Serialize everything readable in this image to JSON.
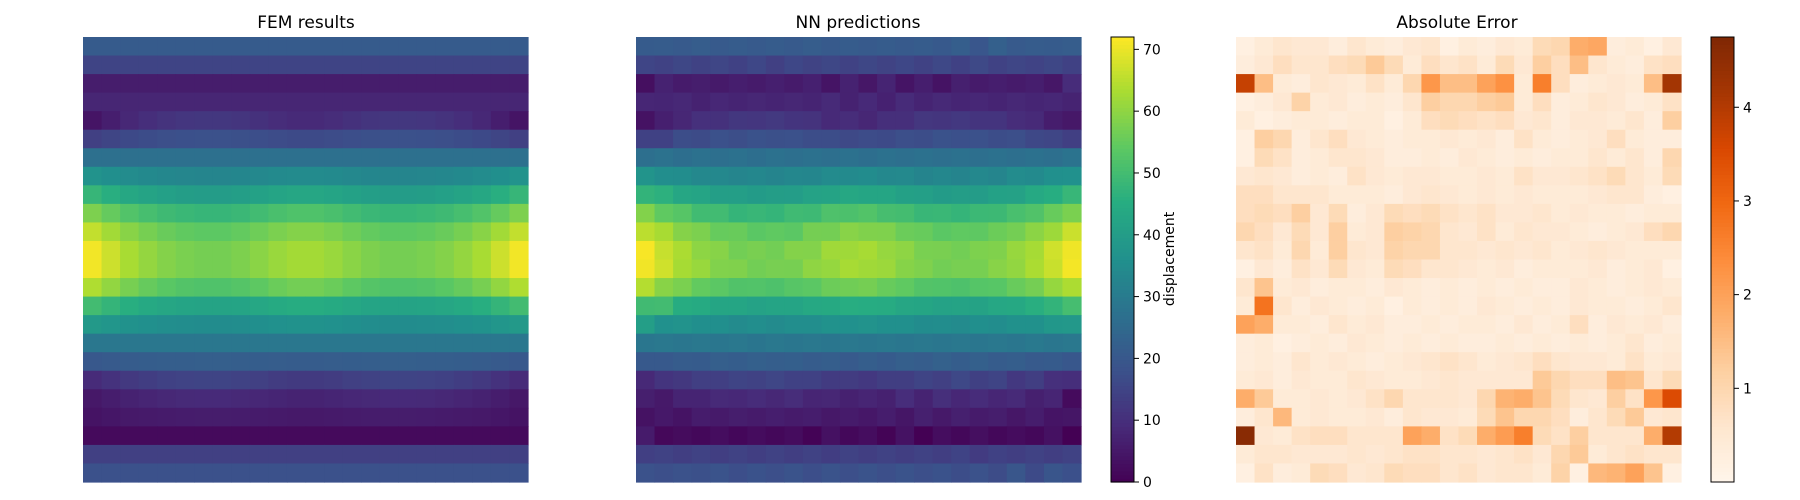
{
  "chart_data": [
    {
      "type": "heatmap",
      "title": "FEM results",
      "rows": 24,
      "cols": 24,
      "colormap": "viridis",
      "vmin": 0,
      "vmax": 72,
      "axes_visible": false,
      "column_profile": [
        0.45,
        0.32,
        0.2,
        0.12,
        0.06,
        0.02,
        0.0,
        0.0,
        0.03,
        0.08,
        0.14,
        0.18,
        0.18,
        0.14,
        0.08,
        0.03,
        0.0,
        0.0,
        0.02,
        0.06,
        0.12,
        0.2,
        0.32,
        0.45
      ],
      "row_base": [
        21,
        15,
        6,
        8,
        12,
        18,
        27,
        33,
        40,
        48,
        54,
        57,
        57,
        52,
        42,
        35,
        29,
        22,
        15,
        9,
        6,
        2,
        14,
        18
      ],
      "row_edge_amplitude": [
        0,
        0,
        0,
        0,
        -8,
        -4,
        0,
        4,
        8,
        10,
        12,
        14,
        14,
        12,
        8,
        4,
        0,
        -2,
        -6,
        -4,
        -2,
        0,
        0,
        0
      ]
    },
    {
      "type": "heatmap",
      "title": "NN predictions",
      "rows": 24,
      "cols": 24,
      "colormap": "viridis",
      "vmin": 0,
      "vmax": 72,
      "axes_visible": false,
      "colorbar": {
        "label": "displacement",
        "ticks": [
          0,
          10,
          20,
          30,
          40,
          50,
          60,
          70
        ]
      }
    },
    {
      "type": "heatmap",
      "title": "Absolute Error",
      "rows": 24,
      "cols": 24,
      "colormap": "Oranges",
      "vmin": 0,
      "vmax": 4.75,
      "axes_visible": false,
      "colorbar": {
        "ticks": [
          1,
          2,
          3,
          4
        ]
      },
      "values": [
        [
          0.2,
          0.4,
          0.6,
          0.5,
          0.5,
          0.3,
          0.6,
          0.4,
          0.3,
          0.5,
          0.6,
          0.2,
          0.4,
          0.3,
          0.5,
          0.4,
          0.9,
          1.0,
          1.8,
          1.9,
          0.3,
          0.4,
          0.2,
          0.5
        ],
        [
          0.3,
          0.5,
          0.8,
          0.6,
          0.6,
          0.8,
          0.9,
          1.3,
          0.9,
          0.4,
          0.8,
          0.6,
          0.7,
          0.4,
          0.9,
          0.5,
          1.2,
          0.8,
          1.5,
          0.6,
          0.4,
          0.3,
          0.7,
          0.8
        ],
        [
          3.8,
          1.5,
          0.4,
          0.3,
          0.6,
          0.5,
          0.4,
          0.7,
          0.4,
          1.0,
          2.2,
          1.5,
          1.5,
          2.0,
          2.3,
          0.4,
          2.6,
          0.8,
          0.3,
          0.4,
          0.5,
          0.4,
          1.5,
          4.2
        ],
        [
          0.2,
          0.3,
          0.5,
          1.1,
          0.4,
          0.5,
          0.3,
          0.4,
          0.3,
          0.6,
          1.2,
          1.0,
          1.0,
          1.2,
          1.3,
          0.4,
          0.8,
          0.3,
          0.4,
          0.6,
          0.5,
          0.3,
          0.4,
          0.7
        ],
        [
          0.4,
          0.2,
          0.3,
          0.4,
          0.4,
          0.3,
          0.4,
          0.4,
          0.2,
          0.4,
          0.8,
          0.9,
          0.8,
          0.7,
          0.8,
          0.5,
          0.6,
          0.3,
          0.5,
          0.5,
          0.4,
          0.6,
          0.3,
          1.2
        ],
        [
          0.2,
          1.2,
          1.0,
          0.3,
          0.6,
          0.8,
          0.5,
          0.4,
          0.3,
          0.4,
          0.4,
          0.5,
          0.4,
          0.5,
          0.3,
          0.7,
          0.4,
          0.3,
          0.4,
          0.5,
          0.8,
          0.4,
          0.3,
          0.3
        ],
        [
          0.2,
          0.9,
          0.7,
          0.3,
          0.4,
          0.6,
          0.6,
          0.5,
          0.3,
          0.3,
          0.4,
          0.3,
          0.5,
          0.4,
          0.3,
          0.4,
          0.3,
          0.4,
          0.4,
          0.6,
          0.4,
          0.6,
          0.3,
          1.0
        ],
        [
          0.5,
          0.6,
          0.5,
          0.3,
          0.4,
          0.3,
          0.7,
          0.5,
          0.4,
          0.5,
          0.5,
          0.4,
          0.4,
          0.5,
          0.4,
          0.7,
          0.5,
          0.5,
          0.6,
          0.7,
          0.9,
          0.6,
          0.4,
          0.9
        ],
        [
          0.8,
          0.8,
          0.6,
          0.6,
          0.6,
          0.4,
          0.4,
          0.4,
          0.3,
          0.5,
          0.6,
          0.5,
          0.4,
          0.5,
          0.4,
          0.5,
          0.4,
          0.4,
          0.4,
          0.5,
          0.6,
          0.6,
          0.3,
          0.2
        ],
        [
          0.8,
          0.9,
          0.8,
          1.2,
          0.5,
          0.9,
          0.3,
          0.5,
          0.9,
          0.8,
          0.9,
          0.7,
          0.6,
          0.7,
          0.5,
          0.5,
          0.6,
          0.4,
          0.5,
          0.4,
          0.4,
          0.3,
          0.4,
          0.4
        ],
        [
          1.0,
          0.8,
          0.5,
          0.9,
          0.5,
          1.2,
          0.4,
          0.5,
          1.2,
          1.1,
          1.0,
          0.6,
          0.5,
          0.7,
          0.4,
          0.6,
          0.5,
          0.5,
          0.4,
          0.3,
          0.4,
          0.5,
          0.8,
          1.0
        ],
        [
          0.6,
          0.7,
          0.4,
          1.0,
          0.4,
          1.2,
          0.6,
          0.5,
          1.1,
          1.0,
          1.0,
          0.6,
          0.6,
          0.5,
          0.6,
          0.5,
          0.6,
          0.4,
          0.5,
          0.6,
          0.5,
          0.4,
          0.4,
          0.4
        ],
        [
          0.2,
          0.5,
          0.3,
          0.7,
          0.5,
          0.9,
          0.5,
          0.4,
          0.9,
          0.8,
          0.6,
          0.6,
          0.5,
          0.4,
          0.5,
          0.3,
          0.4,
          0.4,
          0.4,
          0.5,
          0.3,
          0.4,
          0.5,
          0.2
        ],
        [
          0.6,
          1.4,
          0.4,
          0.5,
          0.3,
          0.4,
          0.4,
          0.3,
          0.5,
          0.4,
          0.3,
          0.4,
          0.3,
          0.4,
          0.3,
          0.4,
          0.3,
          0.3,
          0.5,
          0.4,
          0.3,
          0.4,
          0.5,
          0.4
        ],
        [
          0.4,
          2.8,
          0.6,
          0.3,
          0.5,
          0.4,
          0.3,
          0.4,
          0.2,
          0.4,
          0.3,
          0.4,
          0.3,
          0.5,
          0.4,
          0.3,
          0.4,
          0.3,
          0.5,
          0.4,
          0.4,
          0.3,
          0.4,
          0.6
        ],
        [
          2.0,
          1.8,
          0.4,
          0.4,
          0.3,
          0.6,
          0.4,
          0.5,
          0.3,
          0.3,
          0.4,
          0.3,
          0.4,
          0.4,
          0.3,
          0.5,
          0.3,
          0.4,
          0.8,
          0.3,
          0.5,
          0.4,
          0.5,
          0.3
        ],
        [
          0.3,
          0.4,
          0.2,
          0.3,
          0.4,
          0.3,
          0.5,
          0.4,
          0.3,
          0.4,
          0.3,
          0.4,
          0.3,
          0.3,
          0.4,
          0.3,
          0.4,
          0.3,
          0.4,
          0.3,
          0.4,
          0.6,
          0.3,
          0.4
        ],
        [
          0.3,
          0.4,
          0.3,
          0.6,
          0.4,
          0.5,
          0.4,
          0.3,
          0.4,
          0.5,
          0.6,
          0.7,
          0.6,
          0.4,
          0.5,
          0.6,
          0.8,
          0.6,
          0.5,
          0.5,
          0.4,
          0.7,
          0.4,
          0.5
        ],
        [
          0.4,
          0.5,
          0.3,
          0.5,
          0.4,
          0.4,
          0.6,
          0.5,
          0.4,
          0.4,
          0.5,
          0.6,
          0.5,
          0.5,
          0.5,
          0.5,
          1.3,
          1.0,
          0.8,
          0.8,
          1.5,
          1.4,
          0.6,
          0.9
        ],
        [
          1.8,
          1.3,
          0.4,
          0.4,
          0.5,
          0.4,
          0.5,
          0.7,
          1.0,
          0.6,
          0.6,
          0.6,
          0.5,
          1.0,
          1.7,
          1.8,
          1.4,
          0.9,
          0.6,
          0.5,
          1.2,
          0.7,
          2.2,
          3.5
        ],
        [
          0.3,
          0.6,
          1.6,
          0.4,
          0.5,
          0.4,
          0.4,
          0.5,
          0.3,
          0.6,
          0.5,
          0.5,
          0.4,
          0.9,
          1.4,
          1.0,
          1.0,
          0.8,
          0.3,
          0.6,
          0.9,
          1.3,
          0.5,
          0.6
        ],
        [
          4.6,
          0.5,
          0.4,
          0.7,
          0.8,
          0.8,
          0.6,
          0.6,
          0.6,
          2.0,
          1.8,
          0.7,
          0.9,
          1.8,
          2.1,
          2.6,
          0.9,
          0.7,
          1.2,
          0.6,
          0.6,
          0.6,
          1.8,
          4.0
        ],
        [
          0.4,
          0.6,
          0.6,
          0.5,
          0.5,
          0.5,
          0.6,
          0.5,
          0.6,
          0.7,
          0.7,
          0.6,
          0.6,
          0.5,
          0.6,
          0.7,
          0.5,
          1.0,
          1.3,
          0.4,
          0.6,
          0.7,
          0.6,
          0.6
        ],
        [
          0.2,
          0.7,
          0.3,
          0.4,
          0.9,
          0.8,
          0.5,
          0.6,
          0.9,
          0.8,
          0.8,
          0.6,
          0.7,
          0.5,
          0.6,
          0.6,
          0.4,
          1.1,
          0.2,
          1.6,
          1.7,
          2.0,
          1.4,
          0.2
        ]
      ]
    }
  ]
}
